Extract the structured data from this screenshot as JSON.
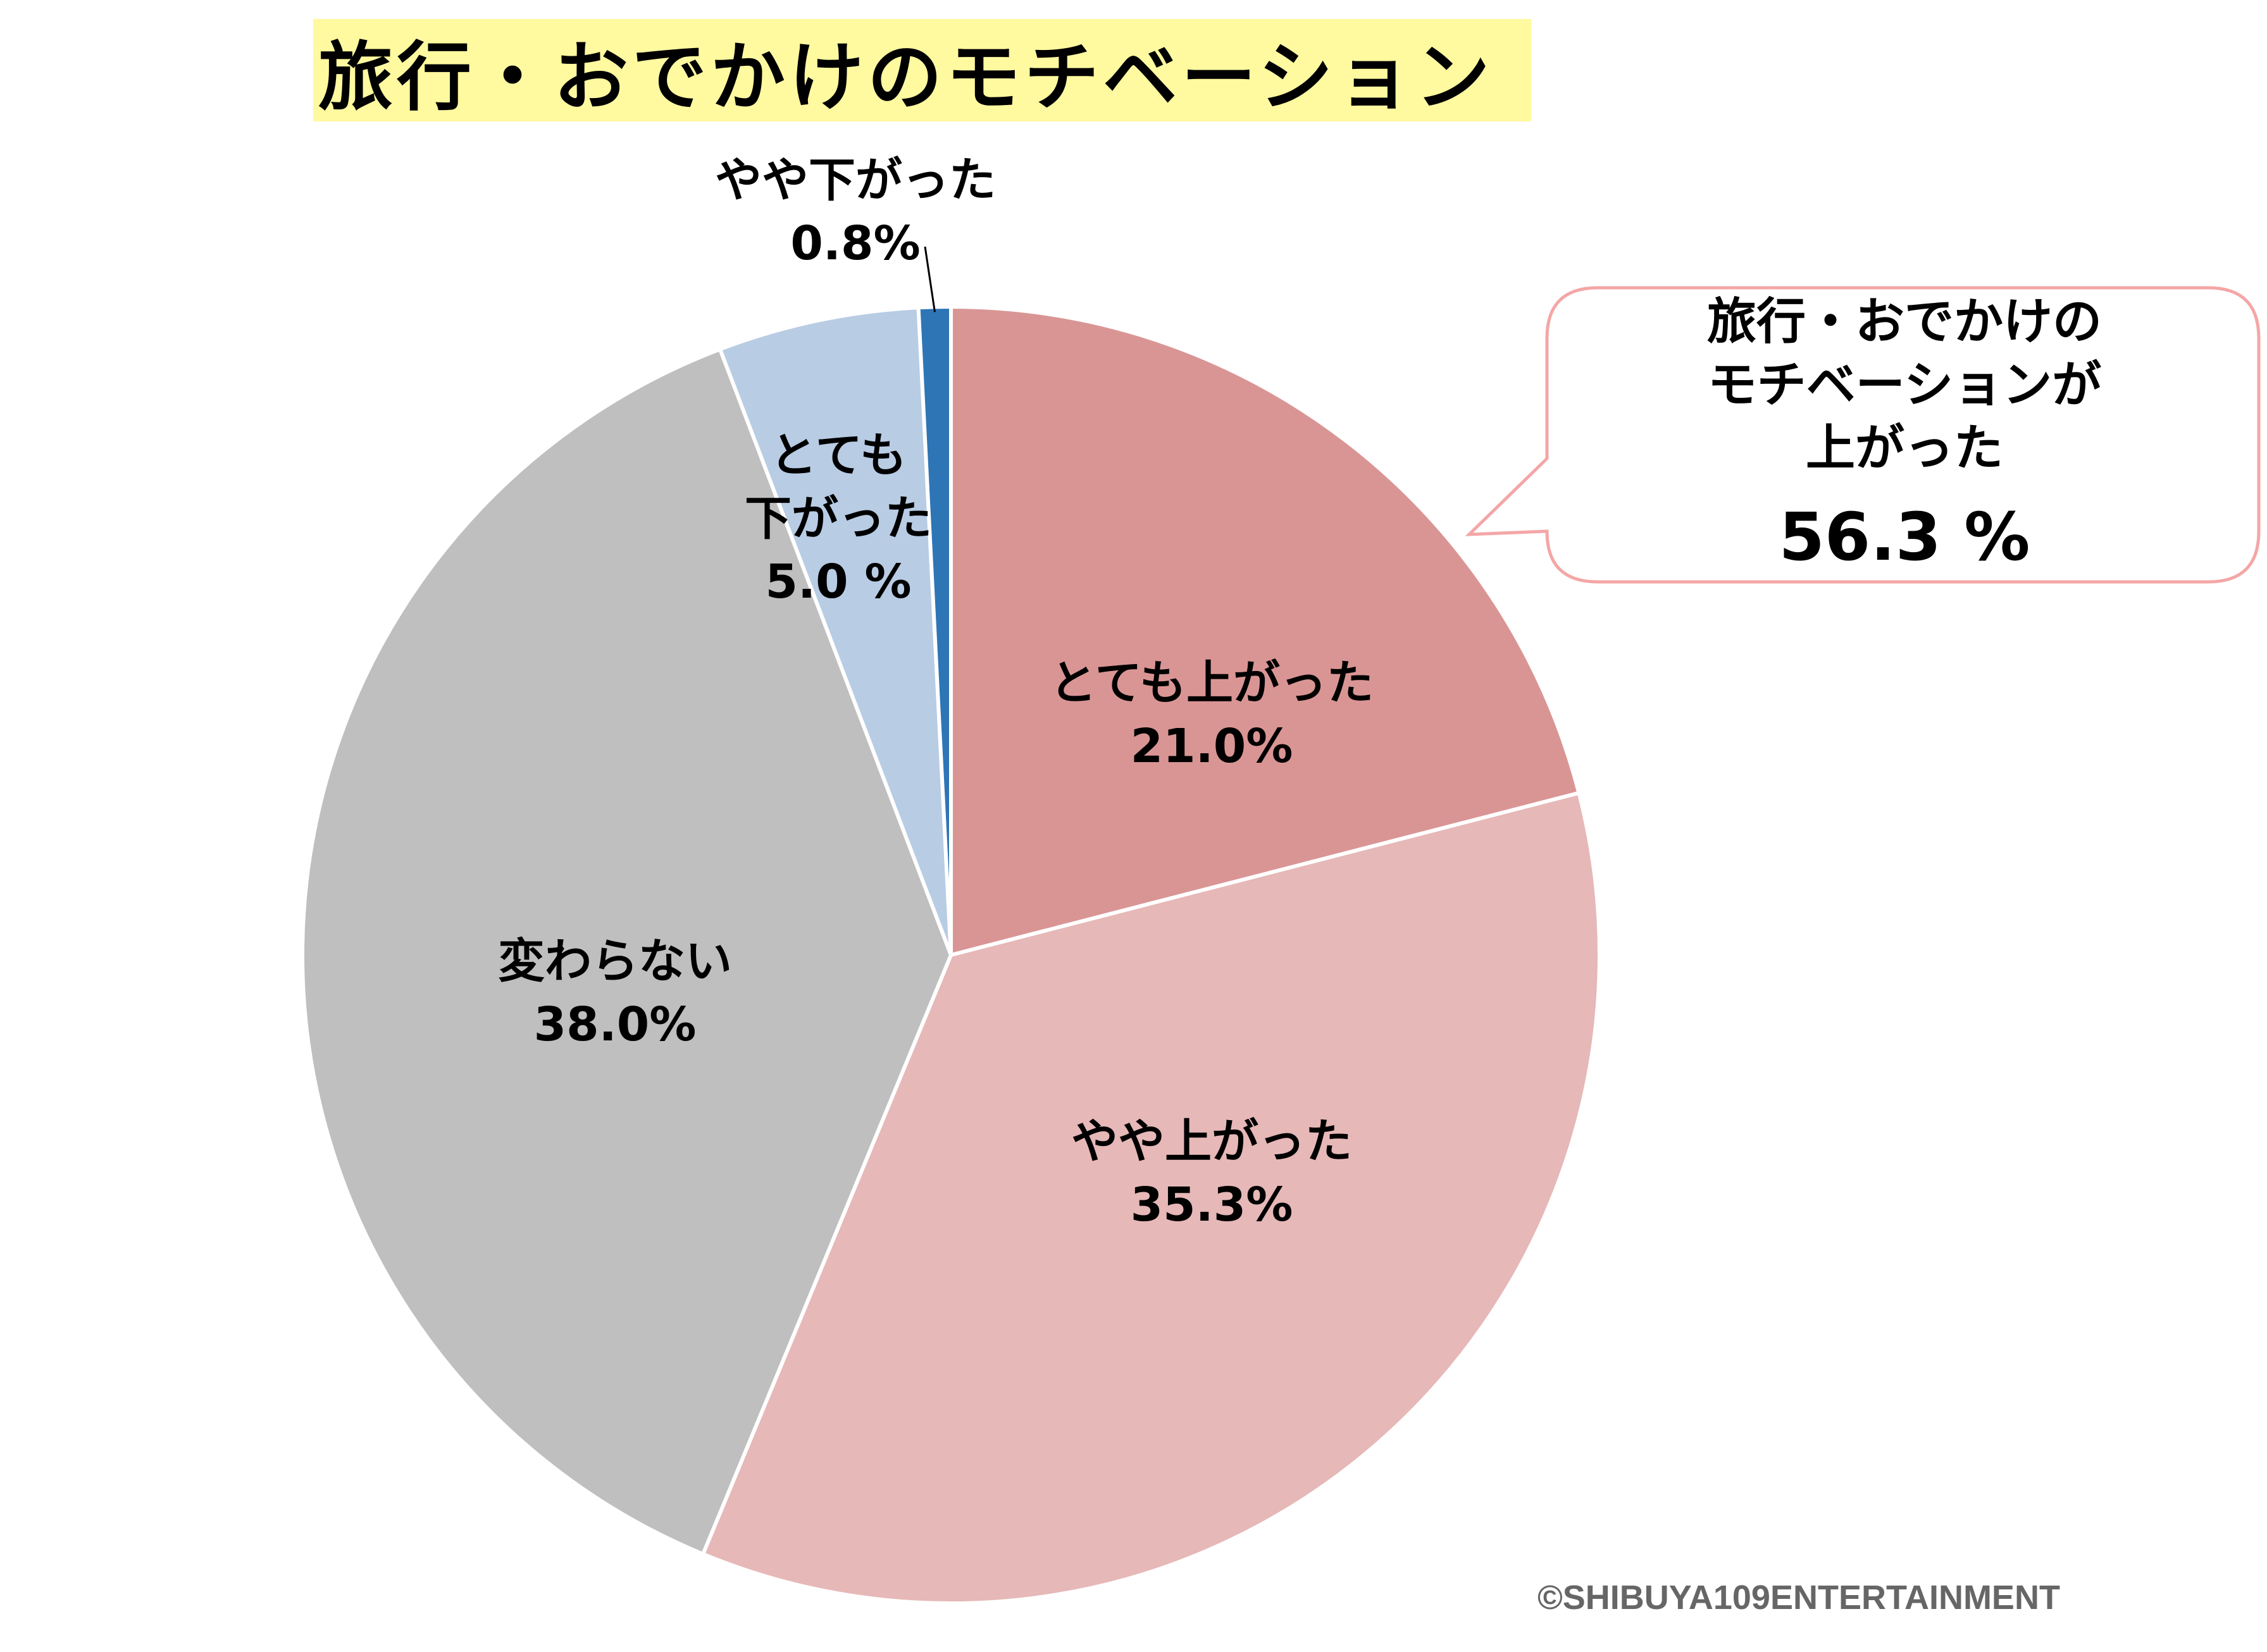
{
  "chart_data": {
    "type": "pie",
    "title": "旅行・おでかけのモチベーション",
    "start": "12 o'clock, clockwise",
    "categories": [
      "とても上がった",
      "やや上がった",
      "変わらない",
      "とても下がった",
      "やや下がった"
    ],
    "values": [
      21.0,
      35.3,
      38.0,
      5.0,
      0.8
    ],
    "labels": [
      {
        "lines": [
          "とても上がった",
          "21.0%"
        ]
      },
      {
        "lines": [
          "やや上がった",
          "35.3%"
        ]
      },
      {
        "lines": [
          "変わらない",
          "38.0%"
        ]
      },
      {
        "lines": [
          "とても",
          "下がった",
          "5.0 %"
        ]
      },
      {
        "lines": [
          "やや下がった",
          "0.8%"
        ]
      }
    ],
    "colors": [
      "#d99594",
      "#e6b8b7",
      "#bfbfbf",
      "#b8cce4",
      "#2e75b6"
    ],
    "callout": {
      "lines": [
        "旅行・おでかけの",
        "モチベーションが",
        "上がった"
      ],
      "value": "56.3 %"
    }
  },
  "title_highlight_color": "#fff9a0",
  "callout_border_color": "#f4a6a6",
  "copyright": "©SHIBUYA109ENTERTAINMENT"
}
